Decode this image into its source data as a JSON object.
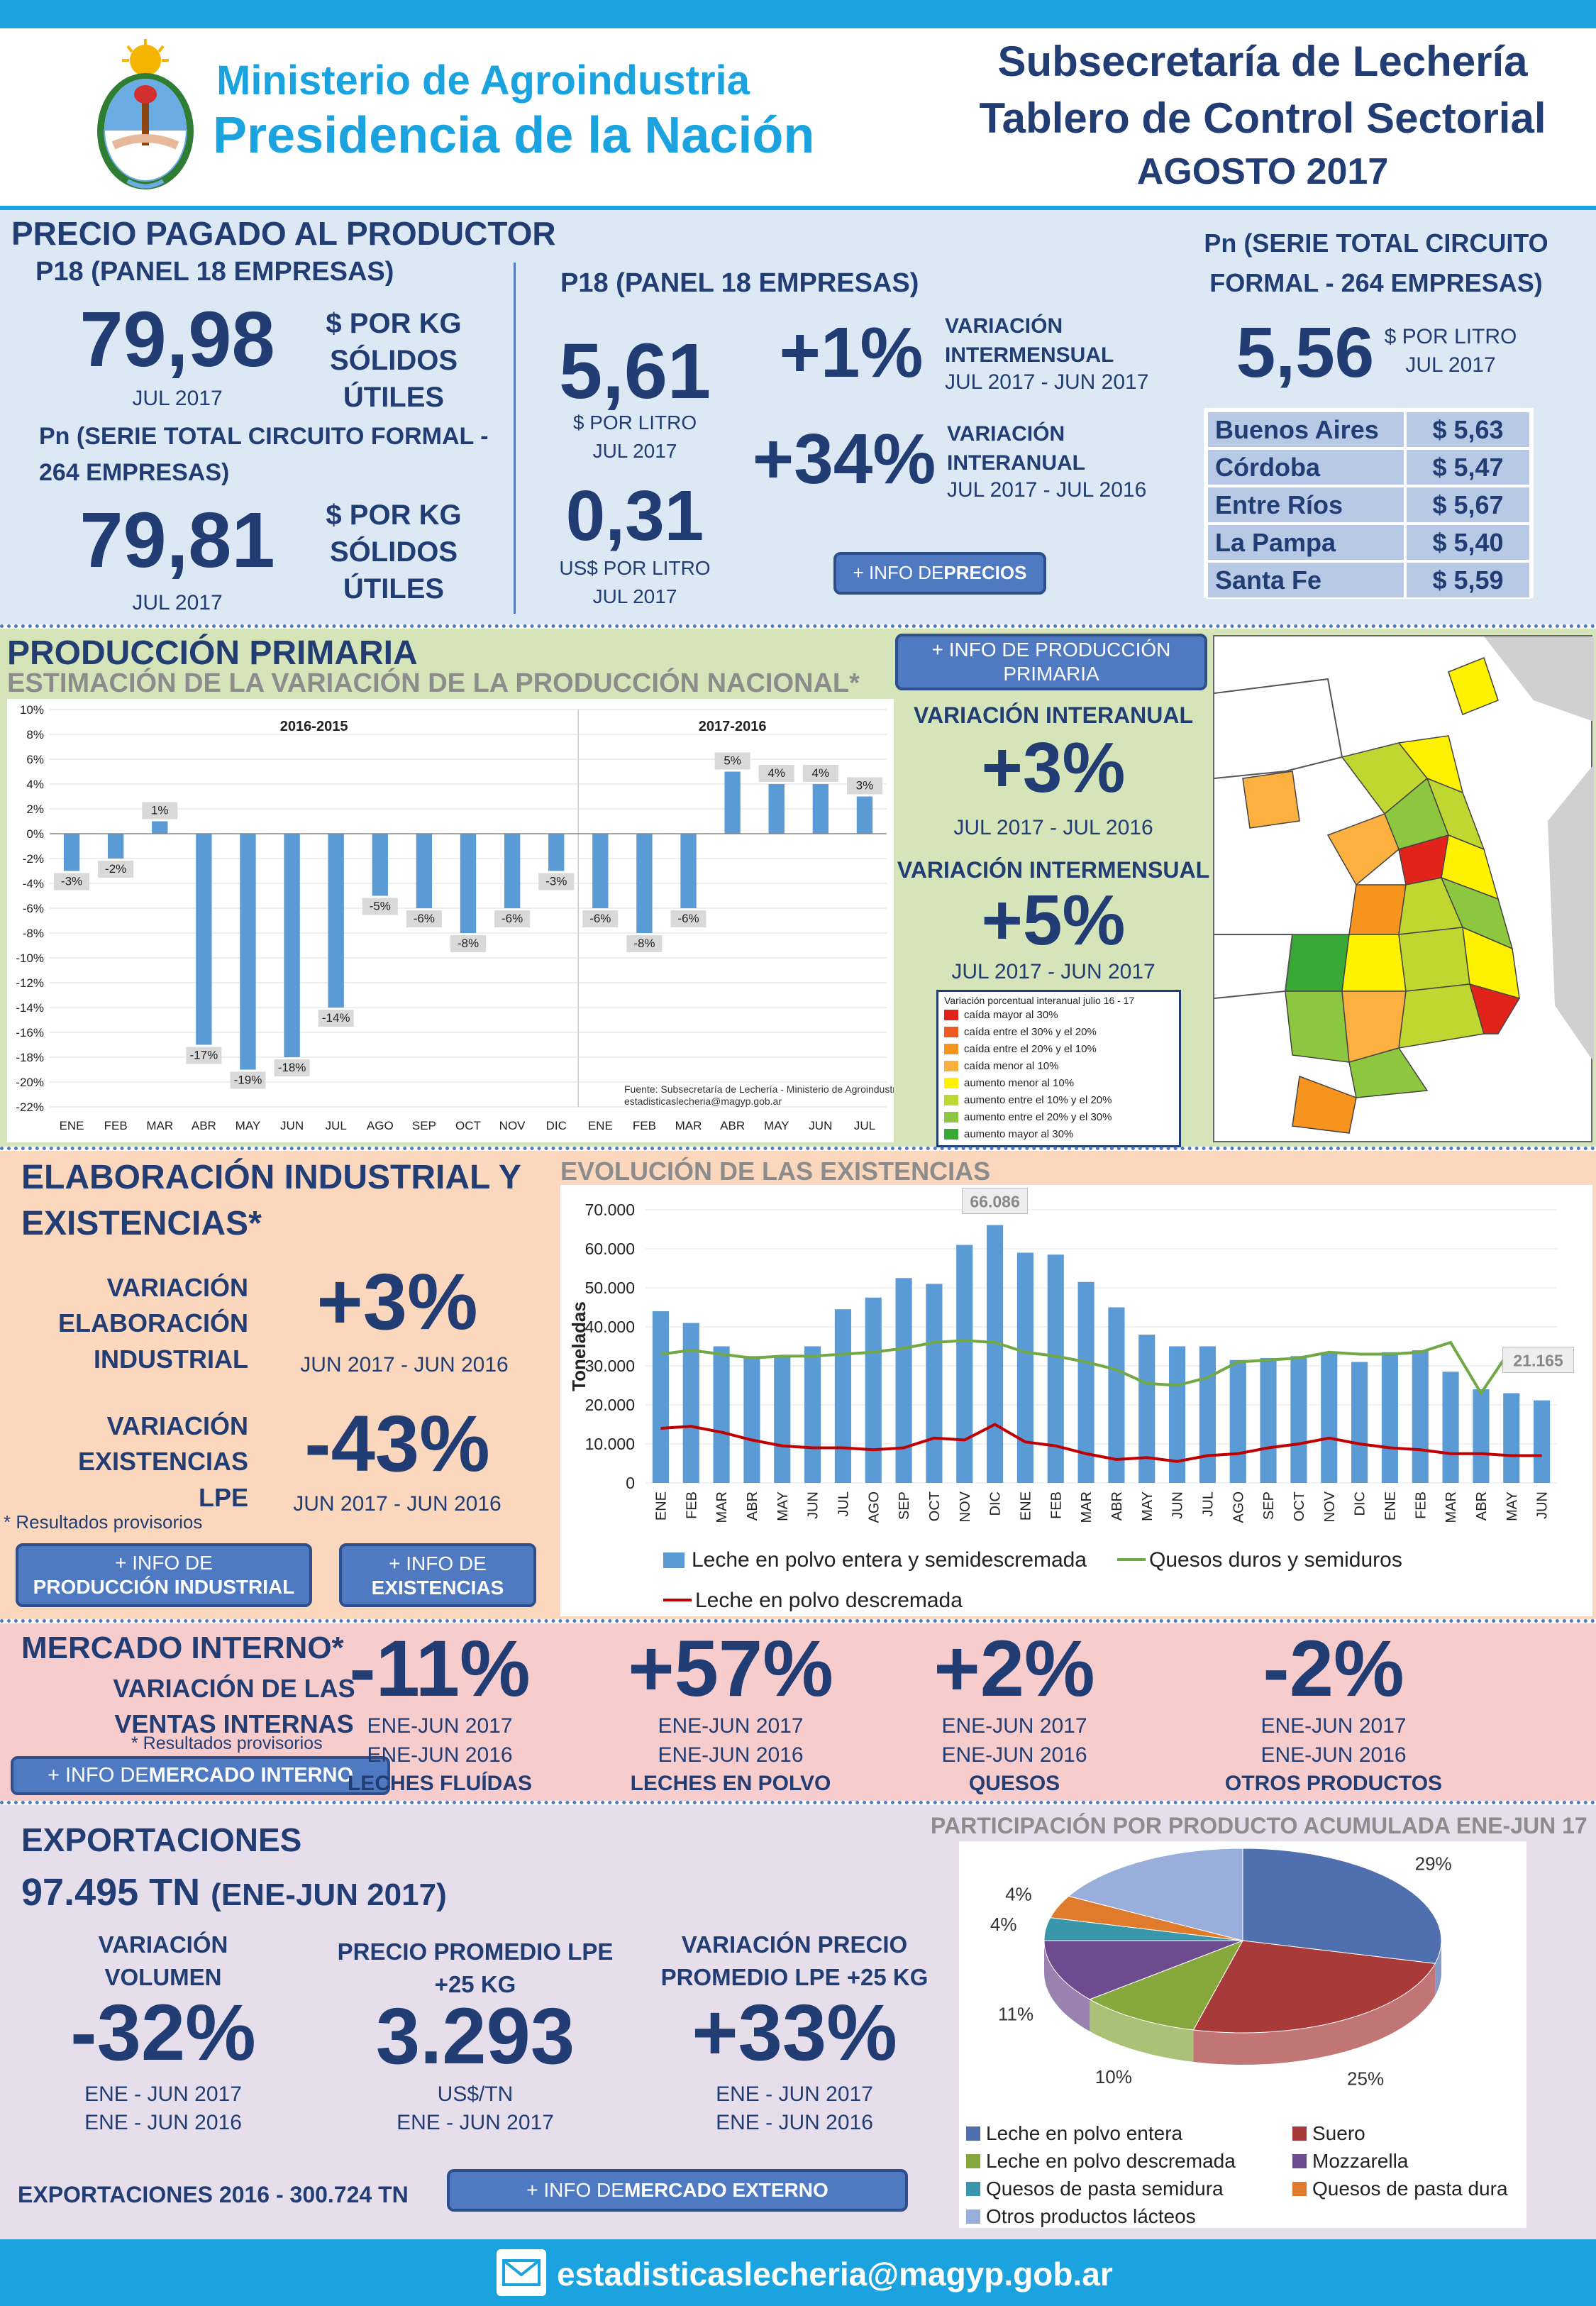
{
  "header": {
    "ministry_line1": "Ministerio de Agroindustria",
    "ministry_line2": "Presidencia de la Nación",
    "title1": "Subsecretaría de Lechería",
    "title2": "Tablero de Control Sectorial",
    "title3": "AGOSTO 2017"
  },
  "precio": {
    "title": "PRECIO PAGADO AL PRODUCTOR",
    "p18_label": "P18 (PANEL 18 EMPRESAS)",
    "p18_value": "79,98",
    "p18_date": "JUL 2017",
    "unit": "$ POR KG SÓLIDOS ÚTILES",
    "pn_label": "Pn (SERIE TOTAL CIRCUITO FORMAL - 264 EMPRESAS)",
    "pn_value": "79,81",
    "pn_date": "JUL 2017",
    "mid_label": "P18 (PANEL 18 EMPRESAS)",
    "litro_value": "5,61",
    "litro_unit": "$ POR LITRO",
    "litro_date": "JUL 2017",
    "usd_value": "0,31",
    "usd_unit": "US$ POR LITRO",
    "usd_date": "JUL 2017",
    "var1_value": "+1%",
    "var1_label": "VARIACIÓN INTERMENSUAL",
    "var1_period": "JUL 2017 - JUN 2017",
    "var2_value": "+34%",
    "var2_label": "VARIACIÓN INTERANUAL",
    "var2_period": "JUL 2017 - JUL 2016",
    "btn_prefix": "+ INFO DE ",
    "btn_bold": "PRECIOS",
    "right_label": "Pn (SERIE TOTAL CIRCUITO FORMAL - 264 EMPRESAS)",
    "right_value": "5,56",
    "right_unit": "$ POR LITRO",
    "right_date": "JUL 2017",
    "provinces": [
      {
        "name": "Buenos Aires",
        "price": "$ 5,63"
      },
      {
        "name": "Córdoba",
        "price": "$ 5,47"
      },
      {
        "name": "Entre Ríos",
        "price": "$ 5,67"
      },
      {
        "name": "La Pampa",
        "price": "$ 5,40"
      },
      {
        "name": "Santa Fe",
        "price": "$ 5,59"
      }
    ]
  },
  "produccion": {
    "title": "PRODUCCIÓN PRIMARIA",
    "subtitle": "ESTIMACIÓN DE LA VARIACIÓN DE LA PRODUCCIÓN NACIONAL*",
    "btn": "+ INFO DE PRODUCCIÓN PRIMARIA",
    "interanual_label": "VARIACIÓN INTERANUAL",
    "interanual_value": "+3%",
    "interanual_period": "JUL 2017 - JUL 2016",
    "intermensual_label": "VARIACIÓN INTERMENSUAL",
    "intermensual_value": "+5%",
    "intermensual_period": "JUL 2017 - JUN 2017",
    "legend_title": "Variación porcentual interanual julio 16 - 17",
    "legend": [
      {
        "label": "caída mayor al 30%",
        "color": "#e2231a"
      },
      {
        "label": "caída entre el 30% y el 20%",
        "color": "#ee5a24"
      },
      {
        "label": "caída entre el 20% y el 10%",
        "color": "#f7941d"
      },
      {
        "label": "caída menor al 10%",
        "color": "#fbb040"
      },
      {
        "label": "aumento menor al 10%",
        "color": "#fff200"
      },
      {
        "label": "aumento entre el 10% y el 20%",
        "color": "#bfd730"
      },
      {
        "label": "aumento entre el 20% y el 30%",
        "color": "#8dc63f"
      },
      {
        "label": "aumento mayor al 30%",
        "color": "#39a935"
      }
    ]
  },
  "industrial": {
    "title": "ELABORACIÓN INDUSTRIAL Y EXISTENCIAS*",
    "elab_label": "VARIACIÓN ELABORACIÓN INDUSTRIAL",
    "elab_value": "+3%",
    "elab_period": "JUN 2017 - JUN 2016",
    "exist_label": "VARIACIÓN EXISTENCIAS LPE",
    "exist_value": "-43%",
    "exist_period": "JUN 2017 - JUN 2016",
    "note": "* Resultados provisorios",
    "btn1_prefix": "+ INFO DE ",
    "btn1_bold": "PRODUCCIÓN INDUSTRIAL",
    "btn2_prefix": "+ INFO DE ",
    "btn2_bold": "EXISTENCIAS",
    "chart_title": "EVOLUCIÓN DE LAS EXISTENCIAS"
  },
  "mercado": {
    "title": "MERCADO INTERNO*",
    "sub": "VARIACIÓN DE LAS VENTAS INTERNAS",
    "note": "* Resultados provisorios",
    "btn_prefix": "+ INFO DE ",
    "btn_bold": "MERCADO INTERNO",
    "items": [
      {
        "value": "-11%",
        "p1": "ENE-JUN 2017",
        "p2": "ENE-JUN 2016",
        "label": "LECHES FLUÍDAS"
      },
      {
        "value": "+57%",
        "p1": "ENE-JUN 2017",
        "p2": "ENE-JUN 2016",
        "label": "LECHES EN POLVO"
      },
      {
        "value": "+2%",
        "p1": "ENE-JUN 2017",
        "p2": "ENE-JUN 2016",
        "label": "QUESOS"
      },
      {
        "value": "-2%",
        "p1": "ENE-JUN 2017",
        "p2": "ENE-JUN 2016",
        "label": "OTROS PRODUCTOS"
      }
    ]
  },
  "export": {
    "title": "EXPORTACIONES",
    "total": "97.495 TN",
    "total_period": "(ENE-JUN 2017)",
    "vol_label": "VARIACIÓN VOLUMEN",
    "vol_value": "-32%",
    "vol_p1": "ENE - JUN 2017",
    "vol_p2": "ENE - JUN 2016",
    "price_label": "PRECIO PROMEDIO LPE +25 KG",
    "price_value": "3.293",
    "price_unit": "US$/TN",
    "price_period": "ENE - JUN 2017",
    "pvar_label": "VARIACIÓN PRECIO PROMEDIO LPE +25 KG",
    "pvar_value": "+33%",
    "pvar_p1": "ENE - JUN 2017",
    "pvar_p2": "ENE - JUN 2016",
    "footer_total": "EXPORTACIONES 2016 - 300.724 TN",
    "btn_prefix": "+ INFO DE ",
    "btn_bold": "MERCADO EXTERNO",
    "pie_title": "PARTICIPACIÓN POR PRODUCTO ACUMULADA ENE-JUN 17"
  },
  "footer": {
    "email": "estadisticaslecheria@magyp.gob.ar"
  },
  "colors": {
    "top_bar": "#1ba3e0",
    "precio_bg": "#dce9f4",
    "prod_bg": "#d6e4b9",
    "ind_bg": "#fbd7bd",
    "merc_bg": "#f7cccc",
    "exp_bg": "#e6dfeb",
    "navy": "#213d74",
    "button": "#4f79c0"
  },
  "chart_data": [
    {
      "type": "bar",
      "title": "ESTIMACIÓN DE LA VARIACIÓN DE LA PRODUCCIÓN NACIONAL*",
      "groups": [
        "2016-2015",
        "2017-2016"
      ],
      "categories": [
        "ENE",
        "FEB",
        "MAR",
        "ABR",
        "MAY",
        "JUN",
        "JUL",
        "AGO",
        "SEP",
        "OCT",
        "NOV",
        "DIC",
        "ENE",
        "FEB",
        "MAR",
        "ABR",
        "MAY",
        "JUN",
        "JUL"
      ],
      "values": [
        -3,
        -2,
        1,
        -17,
        -19,
        -18,
        -14,
        -5,
        -6,
        -8,
        -6,
        -3,
        -6,
        -8,
        -6,
        5,
        4,
        4,
        3
      ],
      "labels": [
        "-3%",
        "-2%",
        "1%",
        "-17%",
        "-19%",
        "-18%",
        "-14%",
        "-5%",
        "-6%",
        "-8%",
        "-6%",
        "-3%",
        "-6%",
        "-8%",
        "-6%",
        "5%",
        "4%",
        "4%",
        "3%"
      ],
      "ylim": [
        -22,
        10
      ],
      "yticks": [
        "10%",
        "8%",
        "6%",
        "4%",
        "2%",
        "0%",
        "-2%",
        "-4%",
        "-6%",
        "-8%",
        "-10%",
        "-12%",
        "-14%",
        "-16%",
        "-18%",
        "-20%",
        "-22%"
      ],
      "source1": "Fuente: Subsecretaría de Lechería - Ministerio de Agroindustria",
      "source2": "estadisticaslecheria@magyp.gob.ar"
    },
    {
      "type": "bar+line",
      "title": "EVOLUCIÓN DE LAS EXISTENCIAS",
      "ylabel": "Toneladas",
      "ylim": [
        0,
        70000
      ],
      "yticks": [
        "70.000",
        "60.000",
        "50.000",
        "40.000",
        "30.000",
        "20.000",
        "10.000",
        "0"
      ],
      "categories": [
        "ENE",
        "FEB",
        "MAR",
        "ABR",
        "MAY",
        "JUN",
        "JUL",
        "AGO",
        "SEP",
        "OCT",
        "NOV",
        "DIC",
        "ENE",
        "FEB",
        "MAR",
        "ABR",
        "MAY",
        "JUN",
        "JUL",
        "AGO",
        "SEP",
        "OCT",
        "NOV",
        "DIC",
        "ENE",
        "FEB",
        "MAR",
        "ABR",
        "MAY",
        "JUN"
      ],
      "series": [
        {
          "name": "Leche en polvo entera y semidescremada",
          "kind": "bar",
          "color": "#5b9bd5",
          "values": [
            44000,
            41000,
            35000,
            32500,
            32500,
            35000,
            44500,
            47500,
            52500,
            51000,
            61000,
            66086,
            59000,
            58500,
            51500,
            45000,
            38000,
            35000,
            35000,
            31500,
            32000,
            32500,
            33500,
            31000,
            33500,
            34000,
            28500,
            24000,
            23000,
            21165
          ]
        },
        {
          "name": "Quesos duros y semiduros",
          "kind": "line",
          "color": "#70a845",
          "values": [
            33000,
            34000,
            33000,
            32000,
            32500,
            32500,
            33000,
            33500,
            34500,
            36000,
            36500,
            36000,
            33500,
            32500,
            31000,
            29000,
            25500,
            25000,
            27000,
            31000,
            31500,
            32000,
            33500,
            33000,
            33000,
            33500,
            36000,
            23000,
            34500,
            34000
          ]
        },
        {
          "name": "Leche en polvo descremada",
          "kind": "line",
          "color": "#c00000",
          "values": [
            14000,
            14500,
            13000,
            11000,
            9500,
            9000,
            9000,
            8500,
            9000,
            11500,
            11000,
            15000,
            10500,
            9500,
            7500,
            6000,
            6500,
            5500,
            7000,
            7500,
            9000,
            10000,
            11500,
            10000,
            9000,
            8500,
            7500,
            7500,
            7000,
            7000
          ]
        }
      ],
      "annotations": [
        "66.086",
        "21.165"
      ]
    },
    {
      "type": "pie",
      "title": "PARTICIPACIÓN POR PRODUCTO ACUMULADA ENE-JUN 17",
      "slices": [
        {
          "name": "Leche en polvo entera",
          "value": 29,
          "color": "#4f6fae"
        },
        {
          "name": "Suero",
          "value": 25,
          "color": "#a83a3a"
        },
        {
          "name": "Leche en polvo descremada",
          "value": 10,
          "color": "#86a83d"
        },
        {
          "name": "Mozzarella",
          "value": 11,
          "color": "#6d4b8e"
        },
        {
          "name": "Quesos de pasta semidura",
          "value": 4,
          "color": "#3a97ab"
        },
        {
          "name": "Quesos de pasta dura",
          "value": 4,
          "color": "#e07b2c"
        },
        {
          "name": "Otros productos lácteos",
          "value": 17,
          "color": "#9aaedb"
        }
      ]
    }
  ]
}
